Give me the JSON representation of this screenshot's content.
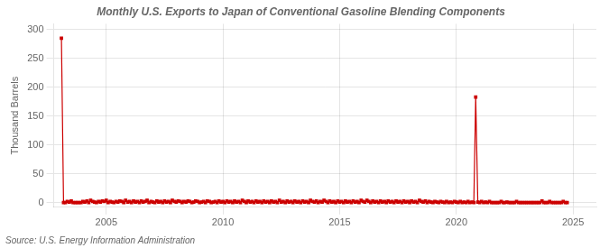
{
  "chart_data": {
    "type": "line",
    "title": "Monthly U.S. Exports to Japan of Conventional Gasoline Blending Components",
    "ylabel": "Thousand Barrels",
    "annotation": "Source: U.S. Energy Information Administration",
    "color": "#cc0000",
    "marker": "square",
    "grid": true,
    "xlim": [
      2002.75,
      2026.0
    ],
    "ylim": [
      -8,
      310
    ],
    "xticks": [
      2005,
      2010,
      2015,
      2020,
      2025
    ],
    "yticks": [
      0,
      50,
      100,
      150,
      200,
      250,
      300
    ],
    "x": [
      2003.08,
      2003.17,
      2003.25,
      2003.33,
      2003.42,
      2003.5,
      2003.58,
      2003.67,
      2003.75,
      2003.83,
      2003.92,
      2004.0,
      2004.08,
      2004.17,
      2004.25,
      2004.33,
      2004.42,
      2004.5,
      2004.58,
      2004.67,
      2004.75,
      2004.83,
      2004.92,
      2005.0,
      2005.08,
      2005.17,
      2005.25,
      2005.33,
      2005.42,
      2005.5,
      2005.58,
      2005.67,
      2005.75,
      2005.83,
      2005.92,
      2006.0,
      2006.08,
      2006.17,
      2006.25,
      2006.33,
      2006.42,
      2006.5,
      2006.58,
      2006.67,
      2006.75,
      2006.83,
      2006.92,
      2007.0,
      2007.08,
      2007.17,
      2007.25,
      2007.33,
      2007.42,
      2007.5,
      2007.58,
      2007.67,
      2007.75,
      2007.83,
      2007.92,
      2008.0,
      2008.08,
      2008.17,
      2008.25,
      2008.33,
      2008.42,
      2008.5,
      2008.58,
      2008.67,
      2008.75,
      2008.83,
      2008.92,
      2009.0,
      2009.08,
      2009.17,
      2009.25,
      2009.33,
      2009.42,
      2009.5,
      2009.58,
      2009.67,
      2009.75,
      2009.83,
      2009.92,
      2010.0,
      2010.08,
      2010.17,
      2010.25,
      2010.33,
      2010.42,
      2010.5,
      2010.58,
      2010.67,
      2010.75,
      2010.83,
      2010.92,
      2011.0,
      2011.08,
      2011.17,
      2011.25,
      2011.33,
      2011.42,
      2011.5,
      2011.58,
      2011.67,
      2011.75,
      2011.83,
      2011.92,
      2012.0,
      2012.08,
      2012.17,
      2012.25,
      2012.33,
      2012.42,
      2012.5,
      2012.58,
      2012.67,
      2012.75,
      2012.83,
      2012.92,
      2013.0,
      2013.08,
      2013.17,
      2013.25,
      2013.33,
      2013.42,
      2013.5,
      2013.58,
      2013.67,
      2013.75,
      2013.83,
      2013.92,
      2014.0,
      2014.08,
      2014.17,
      2014.25,
      2014.33,
      2014.42,
      2014.5,
      2014.58,
      2014.67,
      2014.75,
      2014.83,
      2014.92,
      2015.0,
      2015.08,
      2015.17,
      2015.25,
      2015.33,
      2015.42,
      2015.5,
      2015.58,
      2015.67,
      2015.75,
      2015.83,
      2015.92,
      2016.0,
      2016.08,
      2016.17,
      2016.25,
      2016.33,
      2016.42,
      2016.5,
      2016.58,
      2016.67,
      2016.75,
      2016.83,
      2016.92,
      2017.0,
      2017.08,
      2017.17,
      2017.25,
      2017.33,
      2017.42,
      2017.5,
      2017.58,
      2017.67,
      2017.75,
      2017.83,
      2017.92,
      2018.0,
      2018.08,
      2018.17,
      2018.25,
      2018.33,
      2018.42,
      2018.5,
      2018.58,
      2018.67,
      2018.75,
      2018.83,
      2018.92,
      2019.0,
      2019.08,
      2019.17,
      2019.25,
      2019.33,
      2019.42,
      2019.5,
      2019.58,
      2019.67,
      2019.75,
      2019.83,
      2019.92,
      2020.0,
      2020.08,
      2020.17,
      2020.25,
      2020.33,
      2020.42,
      2020.5,
      2020.58,
      2020.67,
      2020.75,
      2020.83,
      2020.92,
      2021.0,
      2021.08,
      2021.17,
      2021.25,
      2021.33,
      2021.42,
      2021.5,
      2021.58,
      2021.67,
      2021.75,
      2021.83,
      2021.92,
      2022.0,
      2022.08,
      2022.17,
      2022.25,
      2022.33,
      2022.42,
      2022.5,
      2022.58,
      2022.67,
      2022.75,
      2022.83,
      2022.92,
      2023.0,
      2023.08,
      2023.17,
      2023.25,
      2023.33,
      2023.42,
      2023.5,
      2023.58,
      2023.67,
      2023.75,
      2023.83,
      2023.92,
      2024.0,
      2024.08,
      2024.17,
      2024.25,
      2024.33,
      2024.42,
      2024.5,
      2024.58,
      2024.67,
      2024.75
    ],
    "values": [
      285,
      0,
      0,
      2,
      1,
      3,
      0,
      0,
      0,
      0,
      0,
      2,
      1,
      3,
      0,
      4,
      2,
      1,
      0,
      2,
      1,
      3,
      2,
      4,
      0,
      2,
      1,
      0,
      2,
      1,
      3,
      2,
      0,
      4,
      1,
      2,
      0,
      3,
      1,
      2,
      0,
      3,
      1,
      2,
      4,
      0,
      2,
      1,
      0,
      3,
      1,
      2,
      0,
      3,
      1,
      2,
      0,
      4,
      2,
      1,
      3,
      2,
      0,
      2,
      1,
      3,
      2,
      0,
      1,
      3,
      2,
      0,
      1,
      2,
      0,
      3,
      2,
      0,
      1,
      2,
      0,
      3,
      1,
      2,
      0,
      3,
      1,
      2,
      0,
      3,
      1,
      2,
      0,
      4,
      2,
      0,
      3,
      1,
      2,
      0,
      3,
      1,
      2,
      0,
      3,
      1,
      2,
      0,
      3,
      1,
      2,
      0,
      4,
      1,
      2,
      0,
      3,
      1,
      2,
      0,
      3,
      1,
      2,
      0,
      3,
      1,
      2,
      0,
      4,
      2,
      1,
      3,
      0,
      2,
      1,
      4,
      2,
      0,
      3,
      1,
      2,
      0,
      3,
      1,
      2,
      0,
      3,
      1,
      2,
      0,
      3,
      1,
      2,
      0,
      4,
      2,
      1,
      4,
      2,
      0,
      3,
      1,
      2,
      0,
      3,
      1,
      2,
      0,
      3,
      1,
      2,
      0,
      3,
      1,
      2,
      0,
      3,
      1,
      2,
      0,
      3,
      1,
      2,
      0,
      4,
      2,
      1,
      3,
      0,
      2,
      1,
      0,
      2,
      1,
      0,
      2,
      1,
      0,
      2,
      0,
      1,
      0,
      2,
      1,
      0,
      2,
      0,
      1,
      0,
      2,
      0,
      1,
      0,
      183,
      1,
      0,
      2,
      0,
      1,
      0,
      2,
      0,
      0,
      0,
      0,
      0,
      2,
      0,
      0,
      1,
      0,
      0,
      0,
      0,
      2,
      0,
      0,
      0,
      0,
      0,
      0,
      0,
      0,
      0,
      0,
      0,
      0,
      3,
      0,
      0,
      0,
      2,
      0,
      0,
      0,
      0,
      0,
      0,
      2,
      0,
      0
    ]
  }
}
